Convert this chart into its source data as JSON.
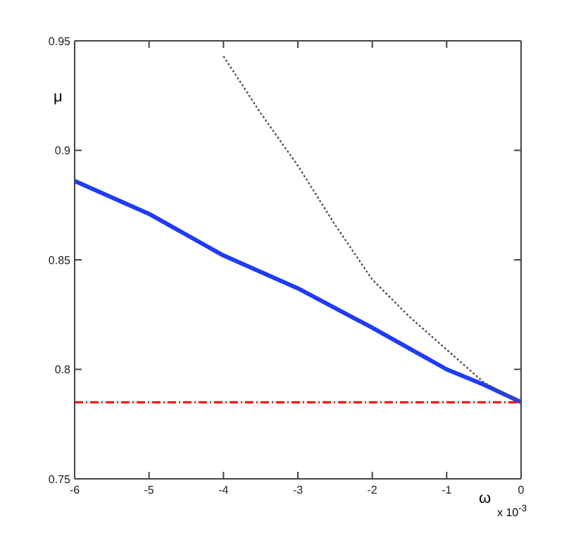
{
  "chart_data": {
    "type": "line",
    "xlabel": "ω",
    "ylabel": "μ",
    "annotations": [
      "x 10$^{-3}$"
    ],
    "xlim": [
      -6,
      0
    ],
    "xticks": [
      -6,
      -5,
      -4,
      -3,
      -2,
      -1,
      0
    ],
    "ylim": [
      0.75,
      0.95
    ],
    "yticks": [
      0.75,
      0.8,
      0.85,
      0.9,
      0.95
    ],
    "marker": "none",
    "series": [
      {
        "color": "#1f3cf5",
        "line_style": "solid",
        "x": [
          -6,
          -5,
          -4,
          -3,
          -2,
          -1,
          -0.5,
          0
        ],
        "values": [
          0.886,
          0.871,
          0.852,
          0.837,
          0.819,
          0.8,
          0.793,
          0.785
        ]
      },
      {
        "color": "#555555",
        "line_style": "dotted",
        "x": [
          -4,
          -3.5,
          -3,
          -2.5,
          -2,
          -1.5,
          -1,
          -0.5,
          0
        ],
        "values": [
          0.943,
          0.917,
          0.893,
          0.866,
          0.841,
          0.824,
          0.809,
          0.794,
          0.785
        ]
      },
      {
        "color": "#ff0000",
        "line_style": "dashed",
        "x": [
          -6,
          0
        ],
        "values": [
          0.785,
          0.785
        ]
      }
    ]
  }
}
